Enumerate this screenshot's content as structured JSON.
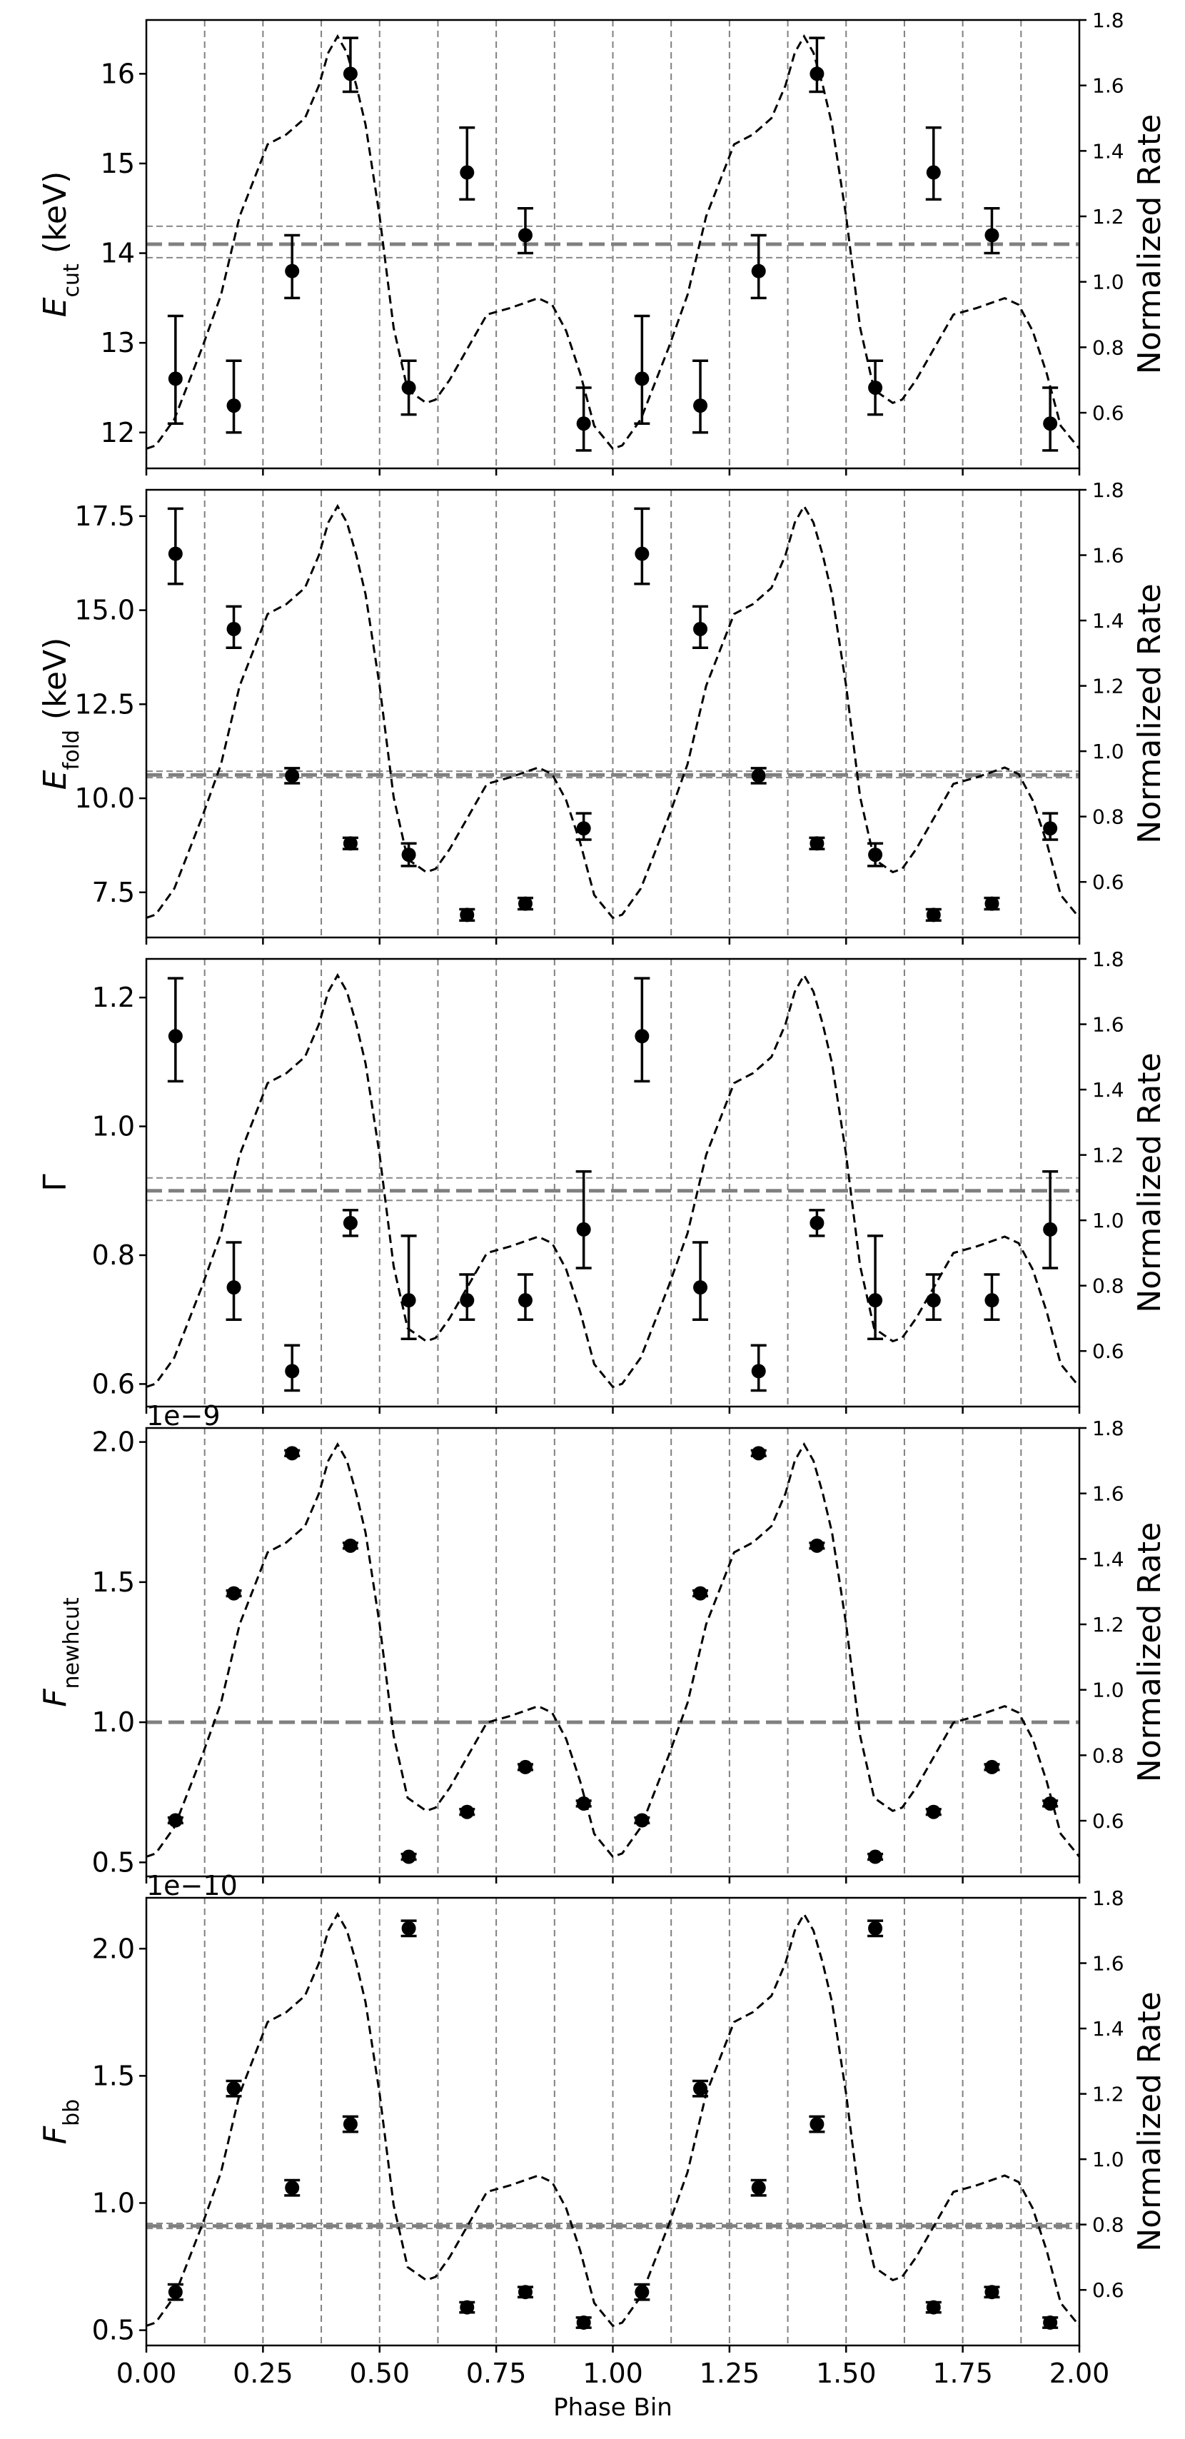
{
  "chart_data": {
    "type": "scatter",
    "xlabel": "Phase Bin",
    "xlim": [
      0.0,
      2.0
    ],
    "x_ticks": [
      "0.00",
      "0.25",
      "0.50",
      "0.75",
      "1.00",
      "1.25",
      "1.50",
      "1.75",
      "2.00"
    ],
    "x_tick_values": [
      0.0,
      0.25,
      0.5,
      0.75,
      1.0,
      1.25,
      1.5,
      1.75,
      2.0
    ],
    "phase_bin_edges": [
      0.125,
      0.25,
      0.375,
      0.5,
      0.625,
      0.75,
      0.875,
      1.0,
      1.125,
      1.25,
      1.375,
      1.5,
      1.625,
      1.75,
      1.875
    ],
    "x": [
      0.0625,
      0.1875,
      0.3125,
      0.4375,
      0.5625,
      0.6875,
      0.8125,
      0.9375,
      1.0625,
      1.1875,
      1.3125,
      1.4375,
      1.5625,
      1.6875,
      1.8125,
      1.9375
    ],
    "right_axis": {
      "label": "Normalized Rate",
      "ylim": [
        0.43,
        1.8
      ],
      "ticks": [
        "0.6",
        "0.8",
        "1.0",
        "1.2",
        "1.4",
        "1.6",
        "1.8"
      ],
      "tick_values": [
        0.6,
        0.8,
        1.0,
        1.2,
        1.4,
        1.6,
        1.8
      ]
    },
    "pulse_profile": {
      "style": "dashed",
      "x": [
        0.0,
        0.02,
        0.06,
        0.12,
        0.16,
        0.2,
        0.26,
        0.3,
        0.34,
        0.37,
        0.39,
        0.41,
        0.43,
        0.45,
        0.47,
        0.5,
        0.53,
        0.56,
        0.6,
        0.62,
        0.65,
        0.69,
        0.73,
        0.78,
        0.82,
        0.84,
        0.87,
        0.9,
        0.93,
        0.96,
        1.0,
        1.02,
        1.06,
        1.12,
        1.16,
        1.2,
        1.26,
        1.3,
        1.34,
        1.37,
        1.39,
        1.41,
        1.43,
        1.45,
        1.47,
        1.5,
        1.53,
        1.56,
        1.6,
        1.62,
        1.65,
        1.69,
        1.73,
        1.78,
        1.82,
        1.84,
        1.87,
        1.9,
        1.93,
        1.96,
        2.0
      ],
      "y": [
        0.49,
        0.5,
        0.58,
        0.8,
        0.96,
        1.2,
        1.42,
        1.45,
        1.5,
        1.6,
        1.7,
        1.75,
        1.7,
        1.6,
        1.48,
        1.2,
        0.86,
        0.67,
        0.63,
        0.64,
        0.7,
        0.8,
        0.9,
        0.92,
        0.94,
        0.95,
        0.93,
        0.85,
        0.72,
        0.56,
        0.49,
        0.5,
        0.58,
        0.8,
        0.96,
        1.2,
        1.42,
        1.45,
        1.5,
        1.6,
        1.7,
        1.75,
        1.7,
        1.6,
        1.48,
        1.2,
        0.86,
        0.67,
        0.63,
        0.64,
        0.7,
        0.8,
        0.9,
        0.92,
        0.94,
        0.95,
        0.93,
        0.85,
        0.72,
        0.56,
        0.49
      ]
    },
    "panels": [
      {
        "ylabel_main": "E",
        "ylabel_sub": "cut",
        "ylabel_tail": " (keV)",
        "offset_text": "",
        "ylim": [
          11.6,
          16.6
        ],
        "y_ticks": [
          "12",
          "13",
          "14",
          "15",
          "16"
        ],
        "y_tick_values": [
          12,
          13,
          14,
          15,
          16
        ],
        "values": [
          12.6,
          12.3,
          13.8,
          16.0,
          12.5,
          14.9,
          14.2,
          12.1,
          12.6,
          12.3,
          13.8,
          16.0,
          12.5,
          14.9,
          14.2,
          12.1
        ],
        "err_low": [
          0.5,
          0.3,
          0.3,
          0.2,
          0.3,
          0.3,
          0.2,
          0.3,
          0.5,
          0.3,
          0.3,
          0.2,
          0.3,
          0.3,
          0.2,
          0.3
        ],
        "err_high": [
          0.7,
          0.5,
          0.4,
          0.4,
          0.3,
          0.5,
          0.3,
          0.4,
          0.7,
          0.5,
          0.4,
          0.4,
          0.3,
          0.5,
          0.3,
          0.4
        ],
        "mean": 14.1,
        "band": [
          13.95,
          14.3
        ]
      },
      {
        "ylabel_main": "E",
        "ylabel_sub": "fold",
        "ylabel_tail": " (keV)",
        "offset_text": "",
        "ylim": [
          6.3,
          18.2
        ],
        "y_ticks": [
          "7.5",
          "10.0",
          "12.5",
          "15.0",
          "17.5"
        ],
        "y_tick_values": [
          7.5,
          10.0,
          12.5,
          15.0,
          17.5
        ],
        "values": [
          16.5,
          14.5,
          10.6,
          8.8,
          8.5,
          6.9,
          7.2,
          9.2,
          16.5,
          14.5,
          10.6,
          8.8,
          8.5,
          6.9,
          7.2,
          9.2
        ],
        "err_low": [
          0.8,
          0.5,
          0.2,
          0.15,
          0.3,
          0.15,
          0.15,
          0.3,
          0.8,
          0.5,
          0.2,
          0.15,
          0.3,
          0.15,
          0.15,
          0.3
        ],
        "err_high": [
          1.2,
          0.6,
          0.2,
          0.15,
          0.3,
          0.15,
          0.15,
          0.4,
          1.2,
          0.6,
          0.2,
          0.15,
          0.3,
          0.15,
          0.15,
          0.4
        ],
        "mean": 10.62,
        "band": [
          10.55,
          10.72
        ]
      },
      {
        "ylabel_main": "Γ",
        "ylabel_sub": "",
        "ylabel_tail": "",
        "offset_text": "",
        "ylim": [
          0.565,
          1.26
        ],
        "y_ticks": [
          "0.6",
          "0.8",
          "1.0",
          "1.2"
        ],
        "y_tick_values": [
          0.6,
          0.8,
          1.0,
          1.2
        ],
        "values": [
          1.14,
          0.75,
          0.62,
          0.85,
          0.73,
          0.73,
          0.73,
          0.84,
          1.14,
          0.75,
          0.62,
          0.85,
          0.73,
          0.73,
          0.73,
          0.84
        ],
        "err_low": [
          0.07,
          0.05,
          0.03,
          0.02,
          0.06,
          0.03,
          0.03,
          0.06,
          0.07,
          0.05,
          0.03,
          0.02,
          0.06,
          0.03,
          0.03,
          0.06
        ],
        "err_high": [
          0.09,
          0.07,
          0.04,
          0.02,
          0.1,
          0.04,
          0.04,
          0.09,
          0.09,
          0.07,
          0.04,
          0.02,
          0.1,
          0.04,
          0.04,
          0.09
        ],
        "mean": 0.9,
        "band": [
          0.885,
          0.92
        ]
      },
      {
        "ylabel_main": "F",
        "ylabel_sub": "newhcut",
        "ylabel_tail": "",
        "offset_text": "1e−9",
        "ylim": [
          0.45,
          2.05
        ],
        "y_ticks": [
          "0.5",
          "1.0",
          "1.5",
          "2.0"
        ],
        "y_tick_values": [
          0.5,
          1.0,
          1.5,
          2.0
        ],
        "values": [
          0.65,
          1.46,
          1.96,
          1.63,
          0.52,
          0.68,
          0.84,
          0.71,
          0.65,
          1.46,
          1.96,
          1.63,
          0.52,
          0.68,
          0.84,
          0.71
        ],
        "err_low": [
          0.01,
          0.01,
          0.01,
          0.01,
          0.01,
          0.01,
          0.01,
          0.01,
          0.01,
          0.01,
          0.01,
          0.01,
          0.01,
          0.01,
          0.01,
          0.01
        ],
        "err_high": [
          0.01,
          0.01,
          0.01,
          0.01,
          0.01,
          0.01,
          0.01,
          0.01,
          0.01,
          0.01,
          0.01,
          0.01,
          0.01,
          0.01,
          0.01,
          0.01
        ],
        "mean": 1.0,
        "band": [
          1.0,
          1.0
        ]
      },
      {
        "ylabel_main": "F",
        "ylabel_sub": "bb",
        "ylabel_tail": "",
        "offset_text": "1e−10",
        "ylim": [
          0.44,
          2.2
        ],
        "y_ticks": [
          "0.5",
          "1.0",
          "1.5",
          "2.0"
        ],
        "y_tick_values": [
          0.5,
          1.0,
          1.5,
          2.0
        ],
        "values": [
          0.65,
          1.45,
          1.06,
          1.31,
          2.08,
          0.59,
          0.65,
          0.53,
          0.65,
          1.45,
          1.06,
          1.31,
          2.08,
          0.59,
          0.65,
          0.53
        ],
        "err_low": [
          0.03,
          0.03,
          0.03,
          0.03,
          0.03,
          0.02,
          0.02,
          0.02,
          0.03,
          0.03,
          0.03,
          0.03,
          0.03,
          0.02,
          0.02,
          0.02
        ],
        "err_high": [
          0.03,
          0.03,
          0.03,
          0.03,
          0.03,
          0.02,
          0.02,
          0.02,
          0.03,
          0.03,
          0.03,
          0.03,
          0.03,
          0.02,
          0.02,
          0.02
        ],
        "mean": 0.91,
        "band": [
          0.9,
          0.92
        ]
      }
    ]
  }
}
